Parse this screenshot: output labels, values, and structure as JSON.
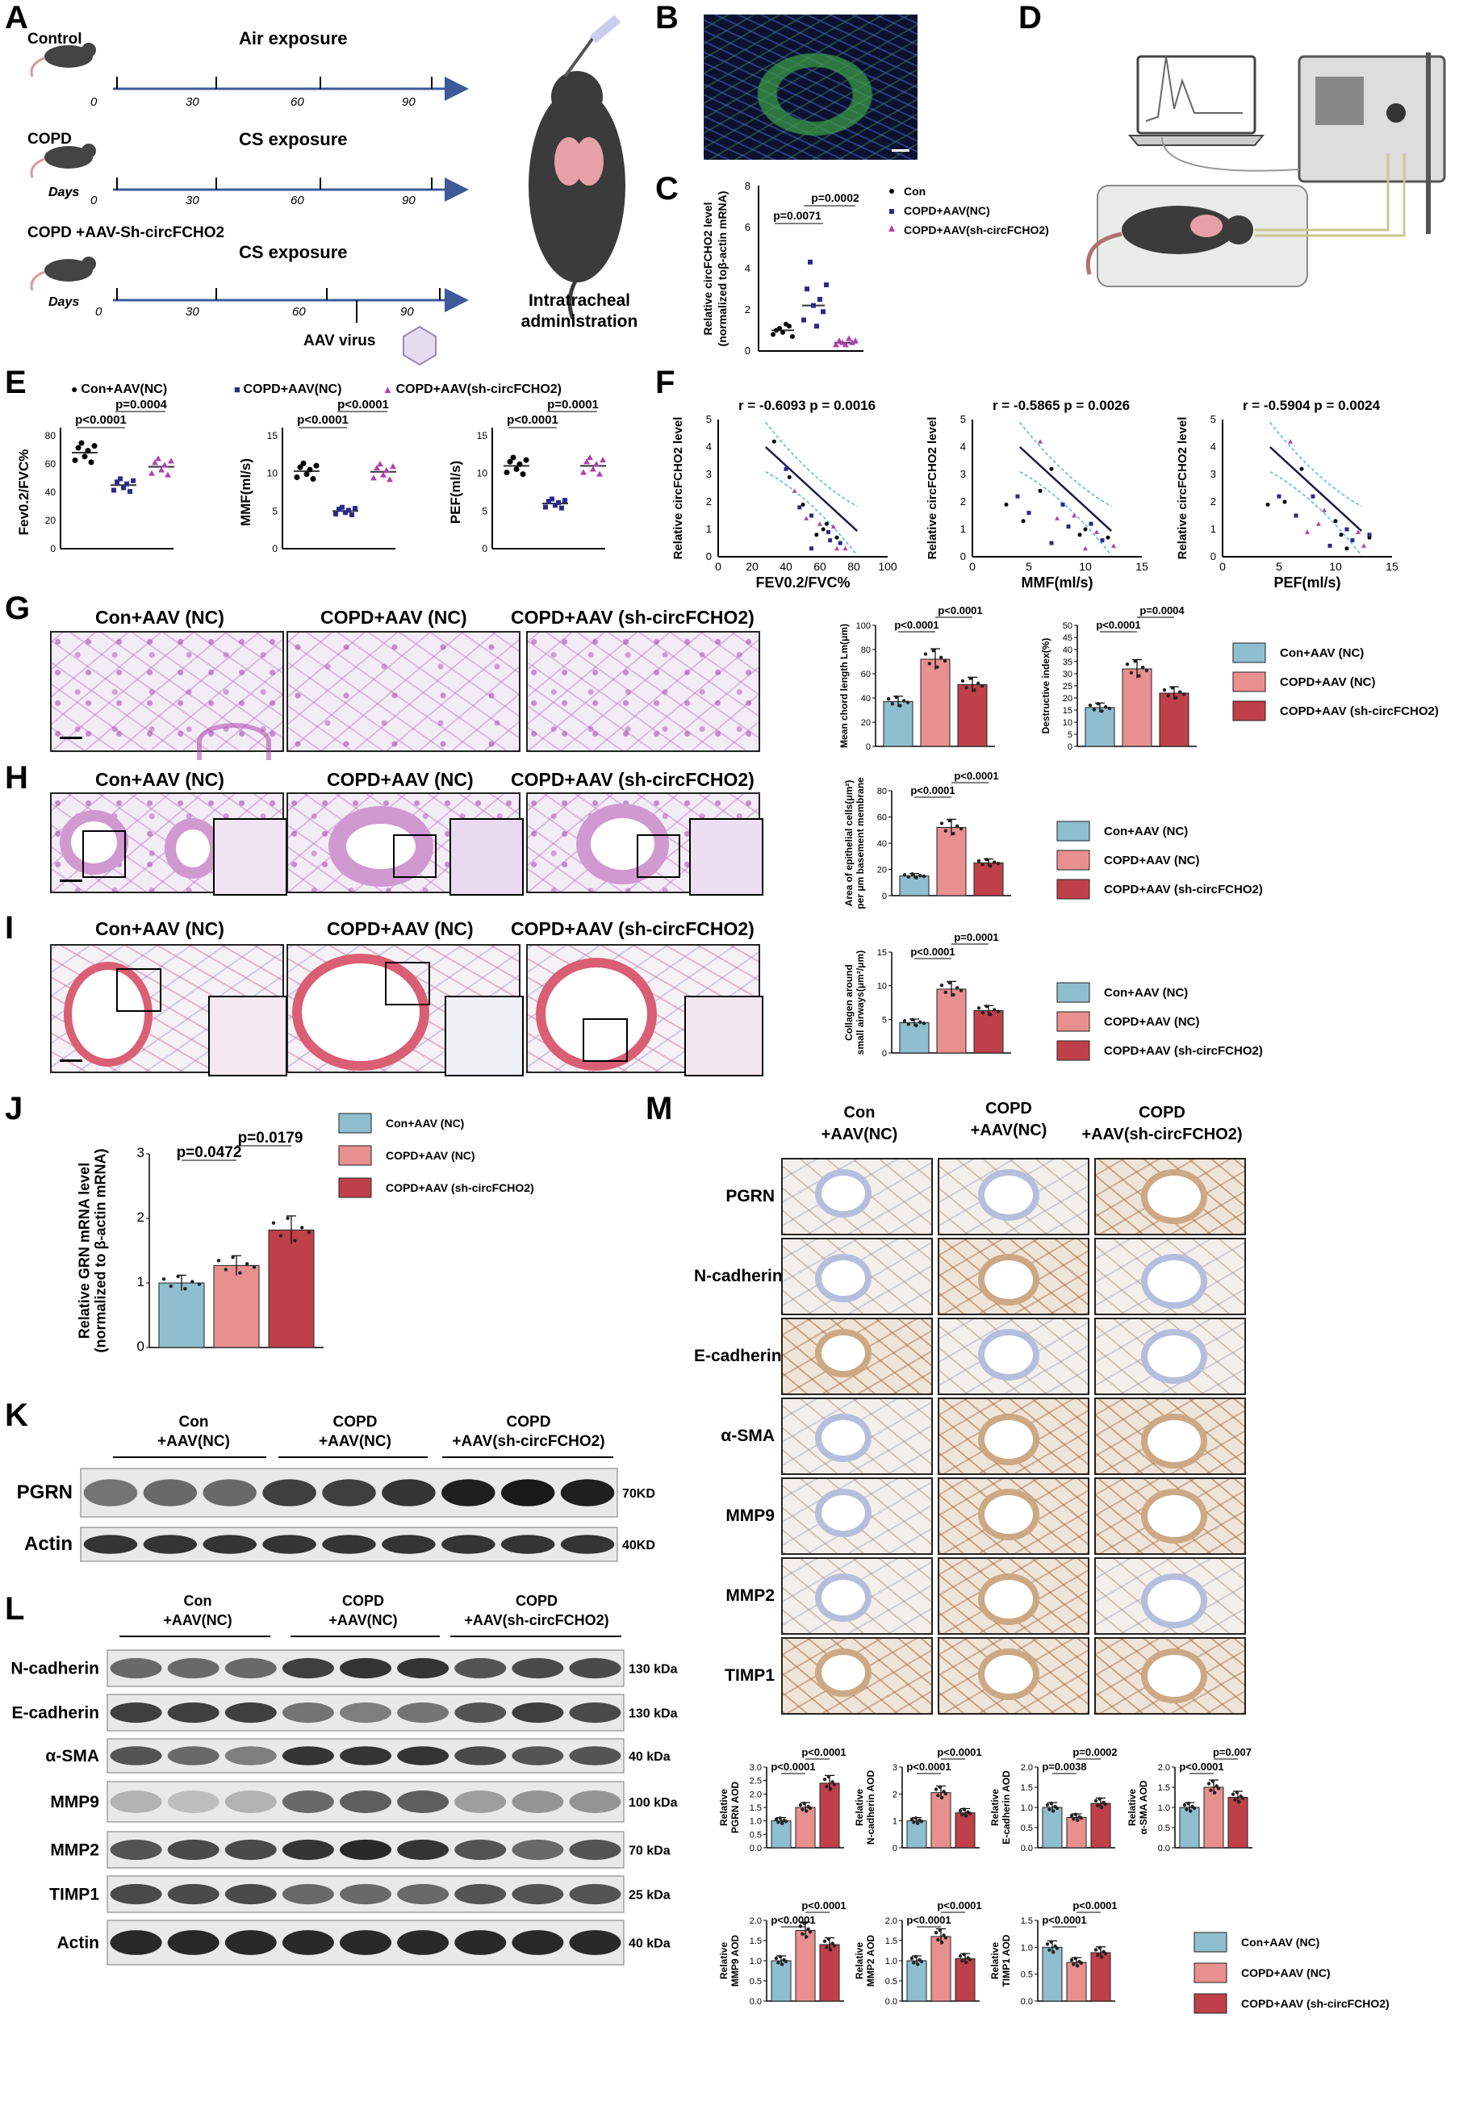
{
  "panels": {
    "A": "A",
    "B": "B",
    "C": "C",
    "D": "D",
    "E": "E",
    "F": "F",
    "G": "G",
    "H": "H",
    "I": "I",
    "J": "J",
    "K": "K",
    "L": "L",
    "M": "M"
  },
  "colors": {
    "con": "#8fbfcf",
    "copd": "#e8908f",
    "sh": "#c0404a",
    "con_dot": "#000000",
    "copd_dot": "#2a2a8a",
    "sh_dot": "#b040b0",
    "timeline": "#3e5a99"
  },
  "panelA": {
    "groups": [
      {
        "name": "Control",
        "exposure": "Air exposure"
      },
      {
        "name": "COPD",
        "exposure": "CS exposure"
      },
      {
        "name": "COPD +AAV-Sh-circFCHO2",
        "exposure": "CS exposure"
      }
    ],
    "days_label": "Days",
    "ticks": [
      "0",
      "30",
      "60",
      "90"
    ],
    "virus_label": "AAV virus",
    "admin_label": "Intratracheal administration"
  },
  "panelC": {
    "ylabel": "Relative circFCHO2 level (normalized toβ-actin mRNA)",
    "ylabel_lines": [
      "Relative circFCHO2 level",
      "(normalized toβ-actin mRNA)"
    ],
    "yticks": [
      "0",
      "2",
      "4",
      "6",
      "8"
    ],
    "legend": [
      "Con",
      "COPD+AAV(NC)",
      "COPD+AAV(sh-circFCHO2)"
    ],
    "p1": "p=0.0071",
    "p2": "p=0.0002"
  },
  "panelE": {
    "legend": [
      "Con+AAV(NC)",
      "COPD+AAV(NC)",
      "COPD+AAV(sh-circFCHO2)"
    ],
    "plots": [
      {
        "ylabel": "Fev0.2/FVC%",
        "yticks": [
          "0",
          "20",
          "40",
          "60",
          "80"
        ],
        "p1": "p<0.0001",
        "p2": "p=0.0004"
      },
      {
        "ylabel": "MMF(ml/s)",
        "yticks": [
          "0",
          "5",
          "10",
          "15"
        ],
        "p1": "p<0.0001",
        "p2": "p<0.0001"
      },
      {
        "ylabel": "PEF(ml/s)",
        "yticks": [
          "0",
          "5",
          "10",
          "15"
        ],
        "p1": "p<0.0001",
        "p2": "p=0.0001"
      }
    ]
  },
  "panelF": {
    "ylabel": "Relative circFCHO2 level",
    "plots": [
      {
        "stats": "r = -0.6093    p = 0.0016",
        "xlabel": "FEV0.2/FVC%",
        "xticks": [
          "0",
          "20",
          "40",
          "60",
          "80",
          "100"
        ]
      },
      {
        "stats": "r = -0.5865    p = 0.0026",
        "xlabel": "MMF(ml/s)",
        "xticks": [
          "0",
          "5",
          "10",
          "15"
        ]
      },
      {
        "stats": "r = -0.5904    p = 0.0024",
        "xlabel": "PEF(ml/s)",
        "xticks": [
          "0",
          "5",
          "10",
          "15"
        ]
      }
    ],
    "yticks": [
      "0",
      "1",
      "2",
      "3",
      "4",
      "5"
    ]
  },
  "histo_titles": [
    "Con+AAV (NC)",
    "COPD+AAV (NC)",
    "COPD+AAV (sh-circFCHO2)"
  ],
  "panelG": {
    "chart1": {
      "ylabel": "Mean chord length Lm(μm)",
      "yticks": [
        "0",
        "20",
        "40",
        "60",
        "80",
        "100"
      ],
      "p1": "p<0.0001",
      "p2": "p<0.0001"
    },
    "chart2": {
      "ylabel": "Destructive index(%)",
      "yticks": [
        "0",
        "5",
        "10",
        "15",
        "20",
        "25",
        "30",
        "35",
        "40",
        "45",
        "50"
      ],
      "p1": "p<0.0001",
      "p2": "p=0.0004"
    }
  },
  "panelH": {
    "chart": {
      "ylabel_lines": [
        "Area of epithelial cells(μm²)",
        "per μm basement membrane"
      ],
      "yticks": [
        "0",
        "20",
        "40",
        "60",
        "80"
      ],
      "p1": "p<0.0001",
      "p2": "p<0.0001"
    }
  },
  "panelI": {
    "chart": {
      "ylabel_lines": [
        "Collagen around",
        "small airways(μm²/μm)"
      ],
      "yticks": [
        "0",
        "5",
        "10",
        "15"
      ],
      "p1": "p<0.0001",
      "p2": "p=0.0001"
    }
  },
  "legend_space": [
    "Con+AAV (NC)",
    "COPD+AAV (NC)",
    "COPD+AAV (sh-circFCHO2)"
  ],
  "panelJ": {
    "ylabel_lines": [
      "Relative GRN mRNA level",
      "(normalized to β-actin mRNA)"
    ],
    "yticks": [
      "0",
      "1",
      "2",
      "3"
    ],
    "p1": "p=0.0472",
    "p2": "p=0.0179"
  },
  "groups_stack": [
    [
      "Con",
      "+AAV(NC)"
    ],
    [
      "COPD",
      "+AAV(NC)"
    ],
    [
      "COPD",
      "+AAV(sh-circFCHO2)"
    ]
  ],
  "panelK": {
    "rows": [
      {
        "name": "PGRN",
        "size": "70KD"
      },
      {
        "name": "Actin",
        "size": "40KD"
      }
    ]
  },
  "panelL": {
    "rows": [
      {
        "name": "N-cadherin",
        "size": "130 kDa"
      },
      {
        "name": "E-cadherin",
        "size": "130 kDa"
      },
      {
        "name": "α-SMA",
        "size": "40 kDa"
      },
      {
        "name": "MMP9",
        "size": "100 kDa"
      },
      {
        "name": "MMP2",
        "size": "70 kDa"
      },
      {
        "name": "TIMP1",
        "size": "25 kDa"
      },
      {
        "name": "Actin",
        "size": "40 kDa"
      }
    ]
  },
  "panelM": {
    "rows": [
      "PGRN",
      "N-cadherin",
      "E-cadherin",
      "α-SMA",
      "MMP9",
      "MMP2",
      "TIMP1"
    ],
    "charts": [
      {
        "ylabel_lines": [
          "Relative",
          "PGRN AOD"
        ],
        "yticks": [
          "0.0",
          "0.5",
          "1.0",
          "1.5",
          "2.0",
          "2.5",
          "3.0"
        ],
        "p1": "p<0.0001",
        "p2": "p<0.0001"
      },
      {
        "ylabel_lines": [
          "Relative",
          "N-cadherin AOD"
        ],
        "yticks": [
          "0",
          "1",
          "2",
          "3"
        ],
        "p1": "p<0.0001",
        "p2": "p<0.0001"
      },
      {
        "ylabel_lines": [
          "Relative",
          "E-cadherin AOD"
        ],
        "yticks": [
          "0.0",
          "0.5",
          "1.0",
          "1.5",
          "2.0"
        ],
        "p1": "p=0.0038",
        "p2": "p=0.0002"
      },
      {
        "ylabel_lines": [
          "Relative",
          "α-SMA AOD"
        ],
        "yticks": [
          "0.0",
          "0.5",
          "1.0",
          "1.5",
          "2.0"
        ],
        "p1": "p<0.0001",
        "p2": "p=0.007"
      },
      {
        "ylabel_lines": [
          "Relative",
          "MMP9 AOD"
        ],
        "yticks": [
          "0.0",
          "0.5",
          "1.0",
          "1.5",
          "2.0"
        ],
        "p1": "p<0.0001",
        "p2": "p<0.0001"
      },
      {
        "ylabel_lines": [
          "Relative",
          "MMP2 AOD"
        ],
        "yticks": [
          "0.0",
          "0.5",
          "1.0",
          "1.5",
          "2.0"
        ],
        "p1": "p<0.0001",
        "p2": "p<0.0001"
      },
      {
        "ylabel_lines": [
          "Relative",
          "TIMP1 AOD"
        ],
        "yticks": [
          "0.0",
          "0.5",
          "1.0",
          "1.5"
        ],
        "p1": "p<0.0001",
        "p2": "p<0.0001"
      }
    ]
  },
  "chart_data": [
    {
      "type": "scatter",
      "panel": "C",
      "categories": [
        "Con",
        "COPD+AAV(NC)",
        "COPD+AAV(sh-circFCHO2)"
      ],
      "values": [
        1.0,
        2.2,
        0.4
      ],
      "ylim": [
        0,
        8
      ]
    },
    {
      "type": "scatter",
      "panel": "E",
      "series": [
        {
          "name": "Fev0.2/FVC%",
          "values": [
            68,
            45,
            58
          ],
          "ylim": [
            0,
            80
          ]
        },
        {
          "name": "MMF(ml/s)",
          "values": [
            10.3,
            5,
            10.2
          ],
          "ylim": [
            0,
            15
          ]
        },
        {
          "name": "PEF(ml/s)",
          "values": [
            11,
            6,
            11
          ],
          "ylim": [
            0,
            15
          ]
        }
      ],
      "categories": [
        "Con+AAV(NC)",
        "COPD+AAV(NC)",
        "COPD+AAV(sh-circFCHO2)"
      ]
    },
    {
      "type": "scatter",
      "panel": "F",
      "series": [
        {
          "name": "FEV0.2/FVC%",
          "x": [
            33,
            40,
            45,
            50,
            55,
            60,
            62,
            65,
            68,
            70,
            72,
            75,
            58,
            48,
            52,
            64,
            66,
            70,
            42,
            55
          ],
          "y": [
            4.2,
            3.2,
            2.4,
            1.9,
            1.5,
            1.2,
            1.0,
            0.9,
            1.1,
            0.7,
            0.5,
            0.3,
            0.8,
            1.8,
            1.4,
            1.2,
            0.6,
            0.3,
            2.9,
            0.3
          ]
        },
        {
          "name": "MMF(ml/s)",
          "x": [
            3,
            4,
            6,
            7,
            8,
            9,
            10,
            10.5,
            11,
            12,
            5,
            7.5,
            9.5,
            11.5,
            12.5,
            6,
            8.5,
            10,
            4.5,
            7
          ],
          "y": [
            1.9,
            2.2,
            4.2,
            3.2,
            1.9,
            1.5,
            1.0,
            1.2,
            0.9,
            0.7,
            1.6,
            1.4,
            0.8,
            0.6,
            0.4,
            2.4,
            1.1,
            0.3,
            1.3,
            0.5
          ]
        },
        {
          "name": "PEF(ml/s)",
          "x": [
            4,
            5,
            6,
            7,
            8,
            9,
            10,
            11,
            12,
            13,
            6.5,
            8.5,
            10.5,
            11.5,
            12.5,
            5.5,
            9.5,
            7.5,
            11,
            13
          ],
          "y": [
            1.9,
            2.2,
            4.2,
            3.2,
            2.2,
            1.7,
            1.3,
            1.0,
            0.9,
            0.7,
            1.5,
            1.2,
            0.8,
            0.6,
            0.4,
            2.0,
            0.4,
            0.9,
            0.3,
            0.8
          ]
        }
      ]
    },
    {
      "type": "bar",
      "panel": "G-Lm",
      "categories": [
        "Con+AAV (NC)",
        "COPD+AAV (NC)",
        "COPD+AAV (sh-circFCHO2)"
      ],
      "values": [
        37,
        72,
        51
      ],
      "ylim": [
        0,
        100
      ]
    },
    {
      "type": "bar",
      "panel": "G-DI",
      "categories": [
        "Con+AAV (NC)",
        "COPD+AAV (NC)",
        "COPD+AAV (sh-circFCHO2)"
      ],
      "values": [
        16,
        32,
        22
      ],
      "ylim": [
        0,
        50
      ]
    },
    {
      "type": "bar",
      "panel": "H",
      "categories": [
        "Con+AAV (NC)",
        "COPD+AAV (NC)",
        "COPD+AAV (sh-circFCHO2)"
      ],
      "values": [
        15,
        52,
        25
      ],
      "ylim": [
        0,
        80
      ]
    },
    {
      "type": "bar",
      "panel": "I",
      "categories": [
        "Con+AAV (NC)",
        "COPD+AAV (NC)",
        "COPD+AAV (sh-circFCHO2)"
      ],
      "values": [
        4.5,
        9.5,
        6.3
      ],
      "ylim": [
        0,
        15
      ]
    },
    {
      "type": "bar",
      "panel": "J",
      "categories": [
        "Con+AAV (NC)",
        "COPD+AAV (NC)",
        "COPD+AAV (sh-circFCHO2)"
      ],
      "values": [
        1.0,
        1.27,
        1.82
      ],
      "ylim": [
        0,
        3
      ]
    },
    {
      "type": "bar",
      "panel": "M-PGRN",
      "values": [
        1.0,
        1.5,
        2.4
      ],
      "ylim": [
        0,
        3
      ]
    },
    {
      "type": "bar",
      "panel": "M-Ncad",
      "values": [
        1.0,
        2.05,
        1.3
      ],
      "ylim": [
        0,
        3
      ]
    },
    {
      "type": "bar",
      "panel": "M-Ecad",
      "values": [
        1.0,
        0.75,
        1.1
      ],
      "ylim": [
        0,
        2
      ]
    },
    {
      "type": "bar",
      "panel": "M-aSMA",
      "values": [
        1.0,
        1.5,
        1.25
      ],
      "ylim": [
        0,
        2
      ]
    },
    {
      "type": "bar",
      "panel": "M-MMP9",
      "values": [
        1.0,
        1.75,
        1.4
      ],
      "ylim": [
        0,
        2
      ]
    },
    {
      "type": "bar",
      "panel": "M-MMP2",
      "values": [
        1.0,
        1.6,
        1.05
      ],
      "ylim": [
        0,
        2
      ]
    },
    {
      "type": "bar",
      "panel": "M-TIMP1",
      "values": [
        1.0,
        0.72,
        0.9
      ],
      "ylim": [
        0,
        1.5
      ]
    }
  ]
}
